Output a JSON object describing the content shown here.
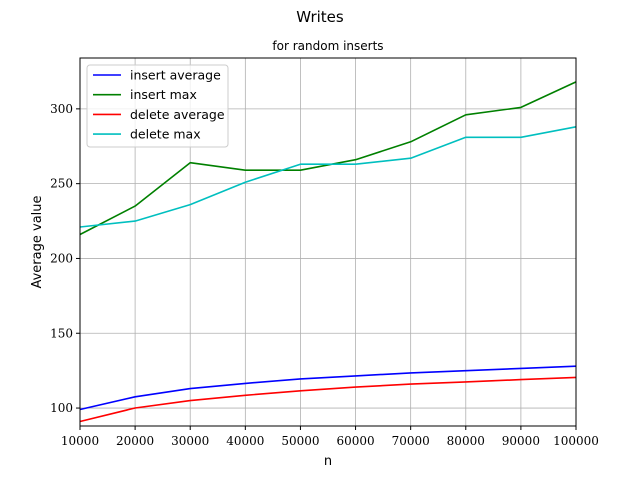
{
  "chart_data": {
    "type": "line",
    "title": "Writes",
    "subtitle": "for random inserts",
    "xlabel": "n",
    "ylabel": "Average value",
    "xlim": [
      10000,
      100000
    ],
    "ylim": [
      88,
      334
    ],
    "grid": true,
    "legend_position": "top-left",
    "x": [
      10000,
      20000,
      30000,
      40000,
      50000,
      60000,
      70000,
      80000,
      90000,
      100000
    ],
    "xticks": [
      "10000",
      "20000",
      "30000",
      "40000",
      "50000",
      "60000",
      "70000",
      "80000",
      "90000",
      "100000"
    ],
    "yticks": [
      100,
      150,
      200,
      250,
      300
    ],
    "series": [
      {
        "name": "insert average",
        "color": "#0000ff",
        "values": [
          99,
          107.5,
          113,
          116.5,
          119.5,
          121.5,
          123.5,
          125,
          126.5,
          128
        ]
      },
      {
        "name": "insert max",
        "color": "#008000",
        "values": [
          216,
          235,
          264,
          259,
          259,
          266,
          278,
          296,
          301,
          318
        ]
      },
      {
        "name": "delete average",
        "color": "#ff0000",
        "values": [
          91,
          100,
          105,
          108.5,
          111.5,
          114,
          116,
          117.5,
          119,
          120.5
        ]
      },
      {
        "name": "delete max",
        "color": "#00bfbf",
        "values": [
          221,
          225,
          236,
          251,
          263,
          263,
          267,
          281,
          281,
          288
        ]
      }
    ]
  }
}
